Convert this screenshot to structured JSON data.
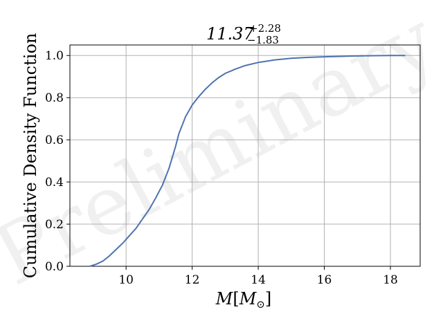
{
  "chart_data": {
    "type": "line",
    "title": {
      "value": "11.37",
      "upper": "+2.28",
      "lower": "−1.83"
    },
    "xlabel": {
      "main": "M",
      "bracket_open": "[",
      "sub_main": "M",
      "sub_script": "⊙",
      "bracket_close": "]"
    },
    "ylabel": "Cumulative Density Function",
    "watermark": "Preliminary",
    "xlim": [
      8.3,
      18.9
    ],
    "ylim": [
      0,
      1.05
    ],
    "grid": true,
    "line_color": "#4c72b0",
    "x_ticks": [
      {
        "value": 10,
        "label": "10"
      },
      {
        "value": 12,
        "label": "12"
      },
      {
        "value": 14,
        "label": "14"
      },
      {
        "value": 16,
        "label": "16"
      },
      {
        "value": 18,
        "label": "18"
      }
    ],
    "y_ticks": [
      {
        "value": 0.0,
        "label": "0.0"
      },
      {
        "value": 0.2,
        "label": "0.2"
      },
      {
        "value": 0.4,
        "label": "0.4"
      },
      {
        "value": 0.6,
        "label": "0.6"
      },
      {
        "value": 0.8,
        "label": "0.8"
      },
      {
        "value": 1.0,
        "label": "1.0"
      }
    ],
    "series": [
      {
        "x": [
          8.9,
          9.1,
          9.3,
          9.5,
          9.7,
          9.9,
          10.1,
          10.3,
          10.5,
          10.7,
          10.9,
          11.1,
          11.3,
          11.5,
          11.6,
          11.8,
          12.0,
          12.2,
          12.4,
          12.6,
          12.8,
          13.0,
          13.3,
          13.6,
          14.0,
          14.5,
          15.0,
          15.5,
          16.0,
          16.5,
          17.0,
          17.5,
          18.0,
          18.45
        ],
        "y": [
          0.0,
          0.01,
          0.025,
          0.05,
          0.08,
          0.11,
          0.145,
          0.18,
          0.225,
          0.27,
          0.325,
          0.385,
          0.465,
          0.57,
          0.63,
          0.71,
          0.765,
          0.805,
          0.84,
          0.87,
          0.895,
          0.915,
          0.935,
          0.952,
          0.967,
          0.979,
          0.987,
          0.991,
          0.994,
          0.996,
          0.998,
          0.999,
          1.0,
          1.0
        ]
      }
    ]
  }
}
